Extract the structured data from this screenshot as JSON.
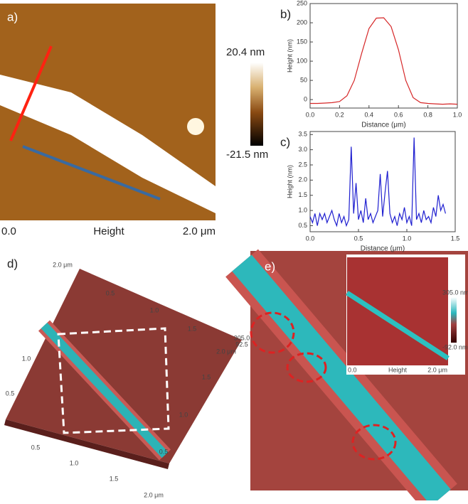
{
  "panel_a": {
    "label": "a)",
    "scale_max": "20.4 nm",
    "scale_min": "-21.5 nm",
    "axis_start": "0.0",
    "axis_title": "Height",
    "axis_end": "2.0 μm"
  },
  "chart_data": [
    {
      "type": "line",
      "panel_label": "b)",
      "x_label": "Distance (μm)",
      "y_label": "Height (nm)",
      "color": "#d62728",
      "x": [
        0,
        0.05,
        0.1,
        0.15,
        0.2,
        0.25,
        0.3,
        0.35,
        0.4,
        0.45,
        0.5,
        0.55,
        0.6,
        0.65,
        0.7,
        0.75,
        0.8,
        0.85,
        0.9,
        0.95,
        1.0
      ],
      "values": [
        -10,
        -10,
        -9,
        -8,
        -5,
        10,
        50,
        120,
        185,
        212,
        213,
        190,
        130,
        50,
        5,
        -8,
        -10,
        -11,
        -12,
        -11,
        -12
      ],
      "xlim": [
        0,
        1
      ],
      "ylim": [
        -22,
        250
      ],
      "xticks": [
        {
          "value": 0,
          "label": "0.0"
        },
        0.2,
        0.4,
        0.6,
        0.8,
        {
          "value": 1,
          "label": "1.0"
        }
      ],
      "yticks": [
        0,
        50,
        100,
        150,
        200,
        250
      ]
    },
    {
      "type": "line",
      "panel_label": "c)",
      "x_label": "Distance (μm)",
      "y_label": "Height (nm)",
      "color": "#1f1fd0",
      "x": [
        0,
        0.025,
        0.05,
        0.075,
        0.1,
        0.125,
        0.15,
        0.175,
        0.2,
        0.225,
        0.25,
        0.275,
        0.3,
        0.325,
        0.35,
        0.375,
        0.4,
        0.425,
        0.45,
        0.475,
        0.5,
        0.525,
        0.55,
        0.575,
        0.6,
        0.625,
        0.65,
        0.675,
        0.7,
        0.725,
        0.75,
        0.775,
        0.8,
        0.825,
        0.85,
        0.875,
        0.9,
        0.925,
        0.95,
        0.975,
        1.0,
        1.025,
        1.05,
        1.075,
        1.1,
        1.125,
        1.15,
        1.175,
        1.2,
        1.225,
        1.25,
        1.275,
        1.3,
        1.325,
        1.35,
        1.375,
        1.4
      ],
      "values": [
        0.8,
        0.6,
        0.9,
        0.5,
        0.9,
        0.7,
        0.9,
        0.6,
        0.8,
        1.0,
        0.7,
        0.5,
        0.9,
        0.6,
        0.8,
        0.5,
        0.7,
        3.1,
        0.9,
        1.9,
        0.7,
        1.0,
        0.6,
        1.4,
        0.7,
        0.9,
        0.6,
        0.8,
        1.0,
        2.2,
        0.8,
        1.6,
        2.3,
        0.9,
        0.6,
        0.8,
        0.5,
        0.9,
        0.7,
        1.1,
        0.6,
        0.8,
        0.5,
        3.4,
        0.7,
        0.9,
        0.6,
        1.0,
        0.7,
        0.8,
        0.6,
        1.1,
        0.8,
        1.5,
        1.0,
        1.2,
        0.9
      ],
      "xlim": [
        0,
        1.5
      ],
      "ylim": [
        0.3,
        3.6
      ],
      "xticks": [
        {
          "value": 0,
          "label": "0.0"
        },
        0.5,
        {
          "value": 1,
          "label": "1.0"
        },
        1.5
      ],
      "yticks": [
        0.5,
        {
          "value": 1,
          "label": "1.0"
        },
        1.5,
        {
          "value": 2,
          "label": "2.0"
        },
        2.5,
        {
          "value": 3,
          "label": "3.0"
        },
        3.5
      ]
    }
  ],
  "panel_d": {
    "label": "d)",
    "axis_labels": [
      "2.0 μm",
      "0.5",
      "1.0",
      "1.5",
      "305.0",
      "92.5",
      "2.0 μm",
      "1.5",
      "1.0",
      "0.5",
      "1.0",
      "0.5",
      "0.5",
      "1.0",
      "1.5",
      "2.0 μm"
    ]
  },
  "panel_e": {
    "label": "e)",
    "scale_max": "305.0 nm",
    "scale_min": "-92.0 nm",
    "axis_start": "0.0",
    "axis_title": "Height",
    "axis_end": "2.0 μm"
  }
}
